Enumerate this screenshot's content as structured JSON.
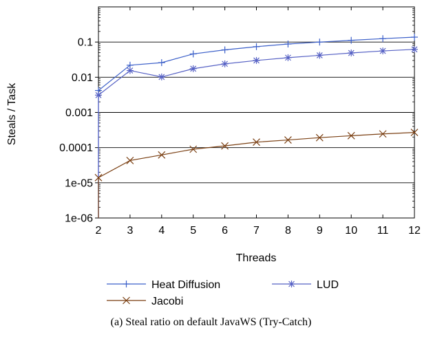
{
  "caption": "(a)  Steal ratio on default JavaWS (Try-Catch)",
  "chart_data": {
    "type": "line",
    "title": "",
    "xlabel": "Threads",
    "ylabel": "Steals / Task",
    "y_scale": "log",
    "xlim": [
      2,
      12
    ],
    "ylim": [
      1e-06,
      1
    ],
    "grid": "horizontal",
    "legend_position": "bottom",
    "x_ticks": [
      "2",
      "3",
      "4",
      "5",
      "6",
      "7",
      "8",
      "9",
      "10",
      "11",
      "12"
    ],
    "y_ticks": [
      {
        "value": 1e-06,
        "label": "1e-06"
      },
      {
        "value": 1e-05,
        "label": "1e-05"
      },
      {
        "value": 0.0001,
        "label": "0.0001"
      },
      {
        "value": 0.001,
        "label": "0.001"
      },
      {
        "value": 0.01,
        "label": "0.01"
      },
      {
        "value": 0.1,
        "label": "0.1"
      }
    ],
    "x": [
      2,
      3,
      4,
      5,
      6,
      7,
      8,
      9,
      10,
      11,
      12
    ],
    "series": [
      {
        "name": "Heat Diffusion",
        "color": "#3b5fc9",
        "marker": "plus",
        "values": [
          0.0042,
          0.022,
          0.026,
          0.046,
          0.06,
          0.074,
          0.088,
          0.1,
          0.112,
          0.125,
          0.138
        ]
      },
      {
        "name": "LUD",
        "color": "#5560c4",
        "marker": "asterisk",
        "values": [
          0.0031,
          0.0155,
          0.0102,
          0.0175,
          0.024,
          0.03,
          0.036,
          0.042,
          0.049,
          0.056,
          0.062
        ]
      },
      {
        "name": "Jacobi",
        "color": "#7a3f12",
        "marker": "x",
        "values": [
          1.4e-05,
          4.3e-05,
          6.2e-05,
          9e-05,
          0.000112,
          0.000143,
          0.000165,
          0.000192,
          0.000218,
          0.000245,
          0.00027
        ]
      }
    ]
  }
}
